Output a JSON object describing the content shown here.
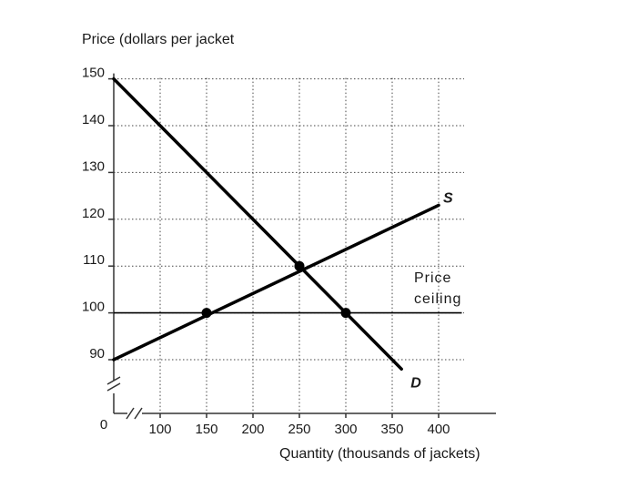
{
  "chart_data": {
    "type": "line",
    "title": "",
    "ylabel": "Price (dollars per jacket",
    "xlabel": "Quantity (thousands of jackets)",
    "origin_label": "0",
    "x_ticks": [
      100,
      150,
      200,
      250,
      300,
      350,
      400
    ],
    "y_ticks": [
      90,
      100,
      110,
      120,
      130,
      140,
      150
    ],
    "xlim": [
      50,
      450
    ],
    "ylim": [
      80,
      155
    ],
    "axis_breaks": true,
    "grid": true,
    "series": [
      {
        "name": "S",
        "x": [
          50,
          400
        ],
        "y": [
          90,
          123
        ],
        "color": "#000000"
      },
      {
        "name": "D",
        "x": [
          50,
          360
        ],
        "y": [
          150,
          88
        ],
        "color": "#000000"
      }
    ],
    "reference_lines": [
      {
        "label_lines": [
          "Price",
          "ceiling"
        ],
        "y": 100,
        "x_from": 50,
        "x_to": 425
      }
    ],
    "points": [
      {
        "x": 150,
        "y": 100
      },
      {
        "x": 300,
        "y": 100
      },
      {
        "x": 250,
        "y": 110
      }
    ]
  }
}
